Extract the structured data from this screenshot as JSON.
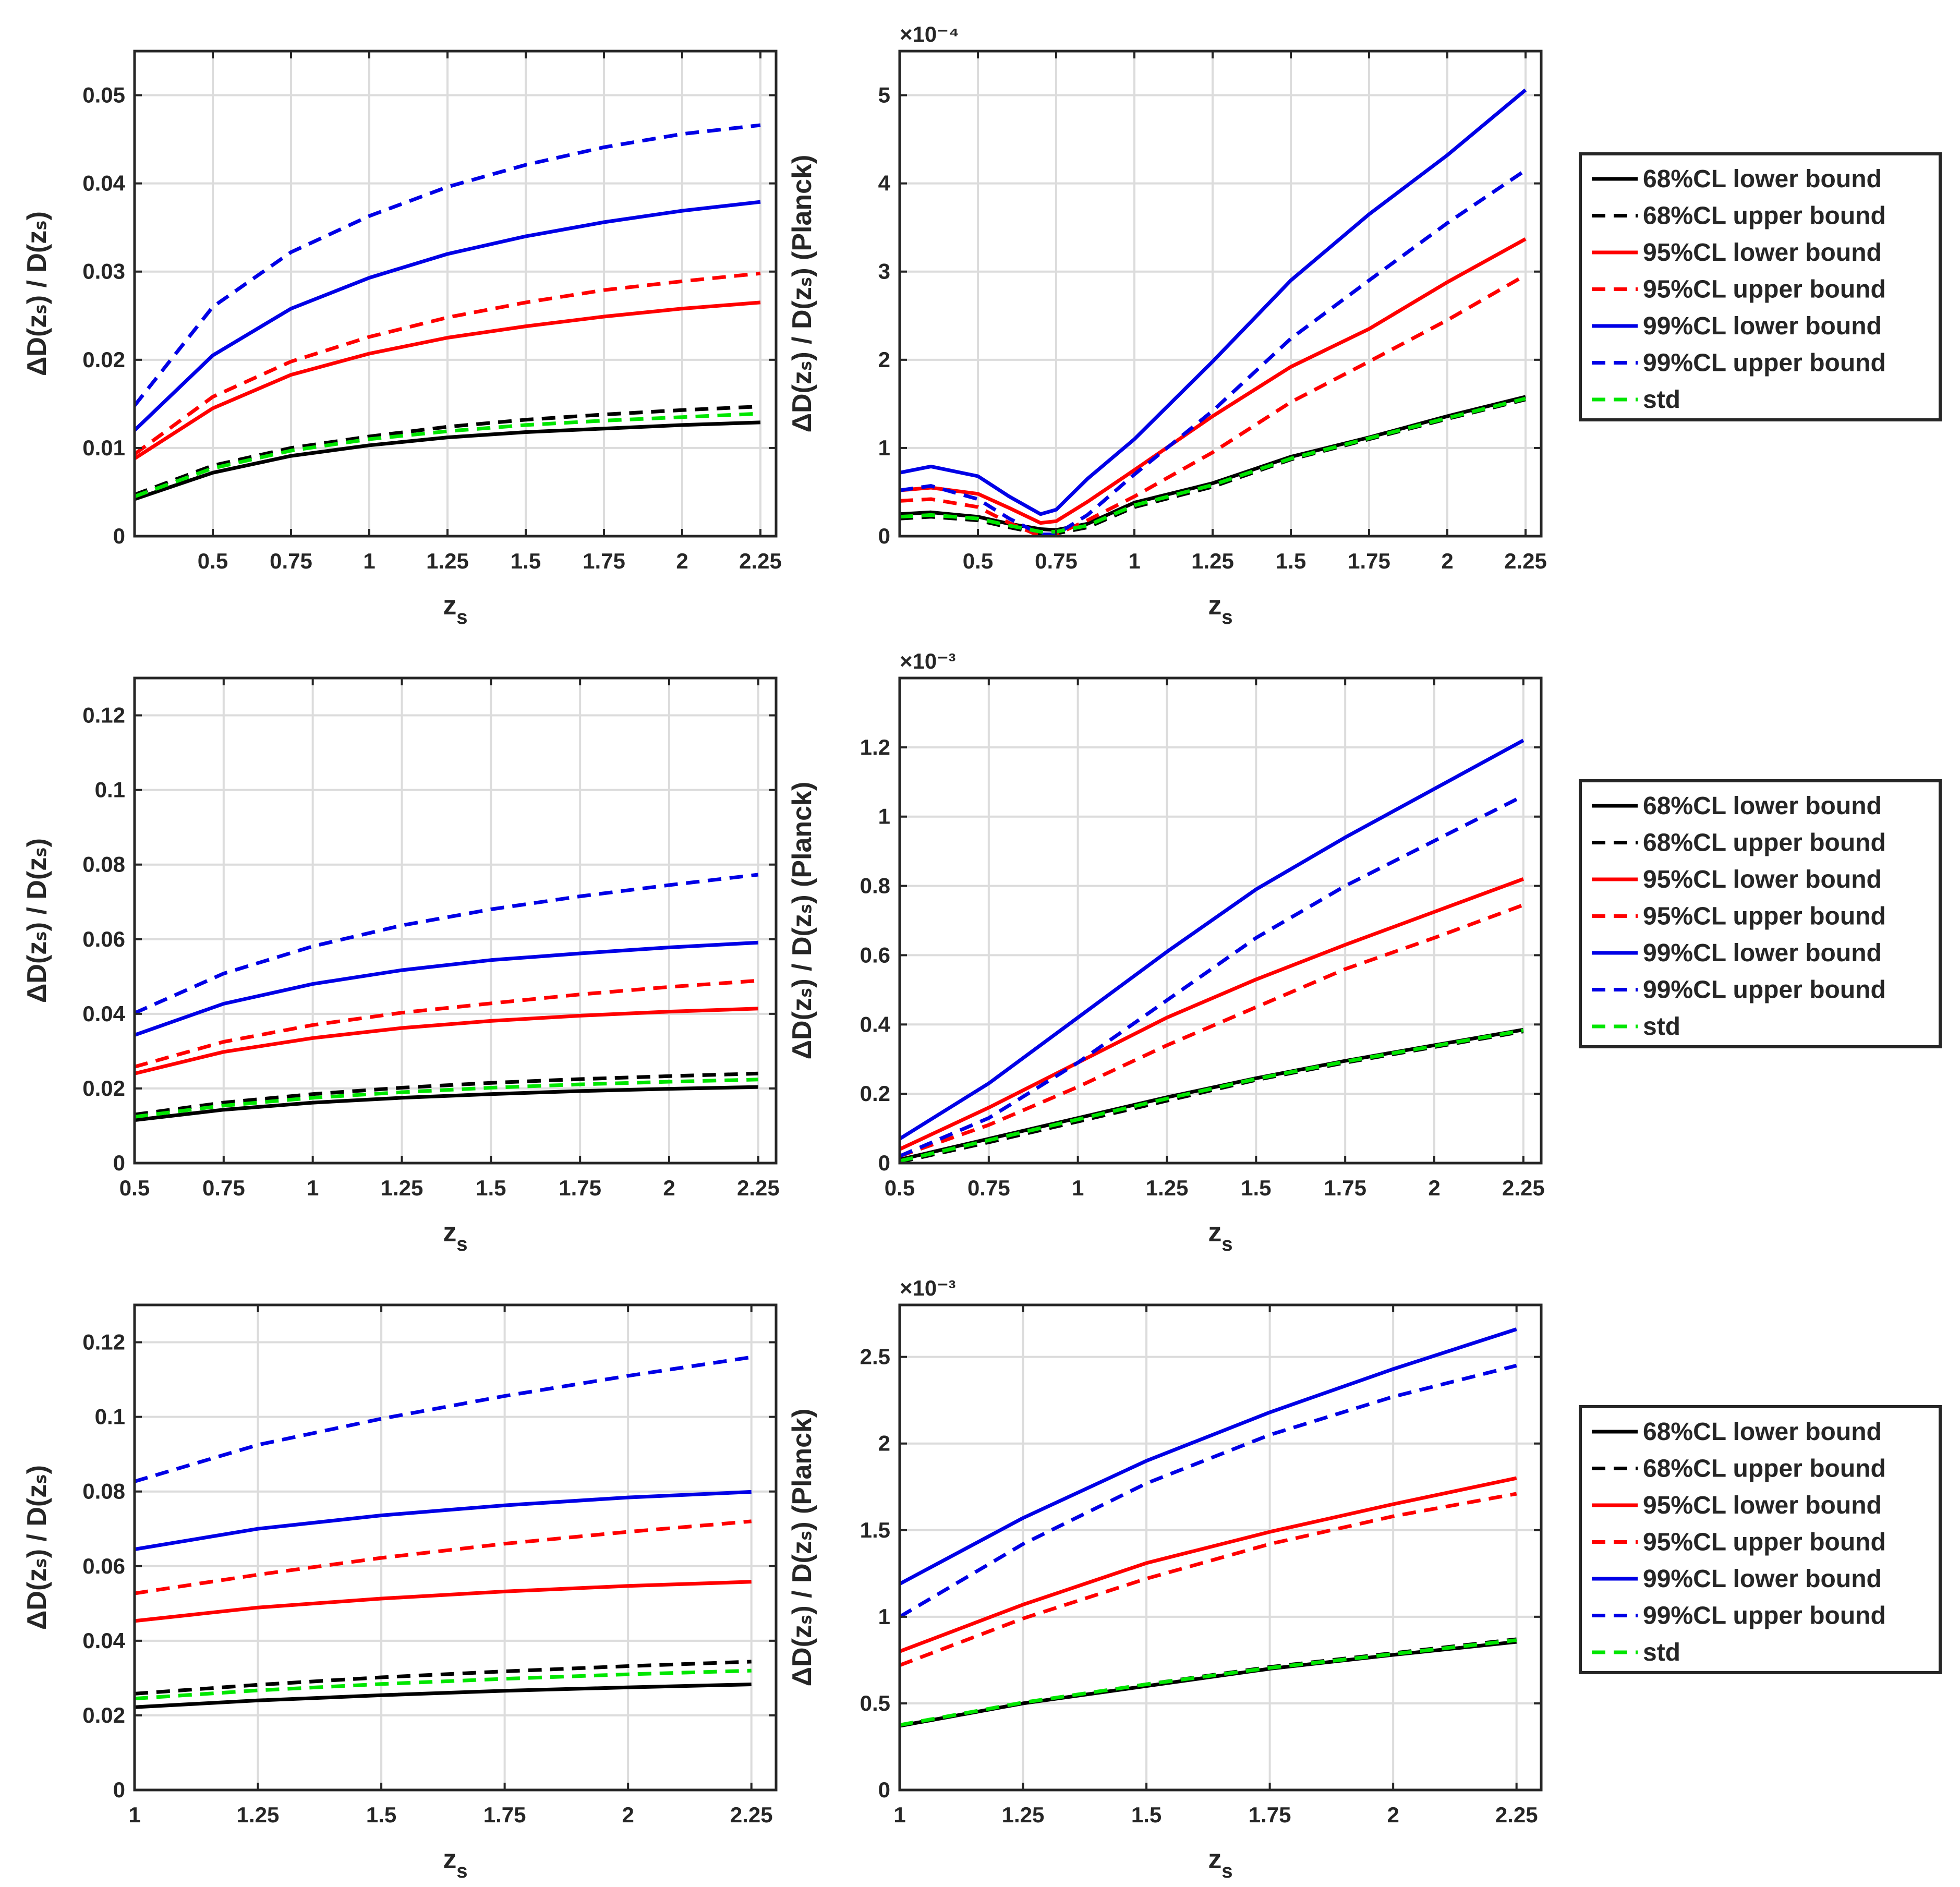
{
  "colors": {
    "black": "#000000",
    "red": "#ff0000",
    "blue": "#0000e6",
    "green": "#00e600",
    "grid": "#dcdcdc",
    "axis": "#262626"
  },
  "legend_entries": [
    {
      "label": "68%CL lower bound",
      "color": "black",
      "dash": false
    },
    {
      "label": "68%CL upper bound",
      "color": "black",
      "dash": true
    },
    {
      "label": "95%CL lower bound",
      "color": "red",
      "dash": false
    },
    {
      "label": "95%CL upper bound",
      "color": "red",
      "dash": true
    },
    {
      "label": "99%CL lower bound",
      "color": "blue",
      "dash": false
    },
    {
      "label": "99%CL upper bound",
      "color": "blue",
      "dash": true
    },
    {
      "label": "std",
      "color": "green",
      "dash": true
    }
  ],
  "chart_data": [
    {
      "type": "line",
      "name": "row1-left",
      "xlabel": "z",
      "xlabel_sub": "s",
      "ylabel": "ΔD(zₛ) / D(zₛ)",
      "xlim": [
        0.25,
        2.3
      ],
      "ylim": [
        0,
        0.055
      ],
      "xticks": [
        0.5,
        0.75,
        1,
        1.25,
        1.5,
        1.75,
        2,
        2.25
      ],
      "xtick_labels": [
        "0.5",
        "0.75",
        "1",
        "1.25",
        "1.5",
        "1.75",
        "2",
        "2.25"
      ],
      "yticks": [
        0,
        0.01,
        0.02,
        0.03,
        0.04,
        0.05
      ],
      "ytick_labels": [
        "0",
        "0.01",
        "0.02",
        "0.03",
        "0.04",
        "0.05"
      ],
      "exponent": "",
      "x": [
        0.25,
        0.5,
        0.75,
        1,
        1.25,
        1.5,
        1.75,
        2,
        2.25
      ],
      "series": [
        {
          "name": "68%CL lower bound",
          "color": "black",
          "dash": false,
          "values": [
            0.0042,
            0.0072,
            0.0091,
            0.0103,
            0.0112,
            0.0118,
            0.0122,
            0.0126,
            0.0129
          ]
        },
        {
          "name": "68%CL upper bound",
          "color": "black",
          "dash": true,
          "values": [
            0.0047,
            0.008,
            0.01,
            0.0113,
            0.0124,
            0.0132,
            0.0138,
            0.0143,
            0.0147
          ]
        },
        {
          "name": "95%CL lower bound",
          "color": "red",
          "dash": false,
          "values": [
            0.0088,
            0.0145,
            0.0183,
            0.0207,
            0.0225,
            0.0238,
            0.0249,
            0.0258,
            0.0265
          ]
        },
        {
          "name": "95%CL upper bound",
          "color": "red",
          "dash": true,
          "values": [
            0.0093,
            0.0158,
            0.0198,
            0.0226,
            0.0248,
            0.0265,
            0.0279,
            0.0289,
            0.0298
          ]
        },
        {
          "name": "99%CL lower bound",
          "color": "blue",
          "dash": false,
          "values": [
            0.012,
            0.0205,
            0.0258,
            0.0293,
            0.032,
            0.034,
            0.0356,
            0.0369,
            0.0379
          ]
        },
        {
          "name": "99%CL upper bound",
          "color": "blue",
          "dash": true,
          "values": [
            0.0148,
            0.026,
            0.0322,
            0.0363,
            0.0396,
            0.0421,
            0.0441,
            0.0456,
            0.0466
          ]
        },
        {
          "name": "std",
          "color": "green",
          "dash": true,
          "values": [
            0.0045,
            0.0077,
            0.0097,
            0.011,
            0.0119,
            0.0126,
            0.0131,
            0.0135,
            0.0139
          ]
        }
      ]
    },
    {
      "type": "line",
      "name": "row1-right",
      "xlabel": "z",
      "xlabel_sub": "s",
      "ylabel": "ΔD(zₛ) / D(zₛ) (Planck)",
      "xlim": [
        0.25,
        2.3
      ],
      "ylim": [
        0,
        5.5
      ],
      "xticks": [
        0.5,
        0.75,
        1,
        1.25,
        1.5,
        1.75,
        2,
        2.25
      ],
      "xtick_labels": [
        "0.5",
        "0.75",
        "1",
        "1.25",
        "1.5",
        "1.75",
        "2",
        "2.25"
      ],
      "yticks": [
        0,
        1,
        2,
        3,
        4,
        5
      ],
      "ytick_labels": [
        "0",
        "1",
        "2",
        "3",
        "4",
        "5"
      ],
      "exponent": "×10⁻⁴",
      "x": [
        0.25,
        0.35,
        0.5,
        0.6,
        0.7,
        0.75,
        0.85,
        1,
        1.25,
        1.5,
        1.75,
        2,
        2.25
      ],
      "series": [
        {
          "name": "68%CL lower bound",
          "color": "black",
          "dash": false,
          "values": [
            0.25,
            0.27,
            0.22,
            0.14,
            0.08,
            0.07,
            0.14,
            0.38,
            0.6,
            0.9,
            1.12,
            1.36,
            1.58
          ]
        },
        {
          "name": "68%CL upper bound",
          "color": "black",
          "dash": true,
          "values": [
            0.2,
            0.22,
            0.18,
            0.1,
            0.03,
            0.03,
            0.1,
            0.33,
            0.56,
            0.87,
            1.1,
            1.33,
            1.55
          ]
        },
        {
          "name": "95%CL lower bound",
          "color": "red",
          "dash": false,
          "values": [
            0.52,
            0.55,
            0.48,
            0.32,
            0.15,
            0.17,
            0.39,
            0.75,
            1.36,
            1.92,
            2.35,
            2.88,
            3.37
          ]
        },
        {
          "name": "95%CL upper bound",
          "color": "red",
          "dash": true,
          "values": [
            0.4,
            0.42,
            0.33,
            0.15,
            0.0,
            0.02,
            0.18,
            0.45,
            0.95,
            1.52,
            1.98,
            2.45,
            2.96
          ]
        },
        {
          "name": "99%CL lower bound",
          "color": "blue",
          "dash": false,
          "values": [
            0.72,
            0.79,
            0.68,
            0.45,
            0.25,
            0.3,
            0.65,
            1.1,
            1.98,
            2.9,
            3.65,
            4.32,
            5.06
          ]
        },
        {
          "name": "99%CL upper bound",
          "color": "blue",
          "dash": true,
          "values": [
            0.52,
            0.57,
            0.42,
            0.2,
            0.02,
            0.02,
            0.24,
            0.7,
            1.42,
            2.24,
            2.9,
            3.55,
            4.15
          ]
        },
        {
          "name": "std",
          "color": "green",
          "dash": true,
          "values": [
            0.22,
            0.24,
            0.2,
            0.12,
            0.05,
            0.05,
            0.12,
            0.35,
            0.58,
            0.88,
            1.11,
            1.34,
            1.56
          ]
        }
      ]
    },
    {
      "type": "line",
      "name": "row2-left",
      "xlabel": "z",
      "xlabel_sub": "s",
      "ylabel": "ΔD(zₛ) / D(zₛ)",
      "xlim": [
        0.5,
        2.3
      ],
      "ylim": [
        0,
        0.13
      ],
      "xticks": [
        0.5,
        0.75,
        1,
        1.25,
        1.5,
        1.75,
        2,
        2.25
      ],
      "xtick_labels": [
        "0.5",
        "0.75",
        "1",
        "1.25",
        "1.5",
        "1.75",
        "2",
        "2.25"
      ],
      "yticks": [
        0,
        0.02,
        0.04,
        0.06,
        0.08,
        0.1,
        0.12
      ],
      "ytick_labels": [
        "0",
        "0.02",
        "0.04",
        "0.06",
        "0.08",
        "0.1",
        "0.12"
      ],
      "exponent": "",
      "x": [
        0.5,
        0.75,
        1,
        1.25,
        1.5,
        1.75,
        2,
        2.25
      ],
      "series": [
        {
          "name": "68%CL lower bound",
          "color": "black",
          "dash": false,
          "values": [
            0.0115,
            0.0143,
            0.0162,
            0.0175,
            0.0185,
            0.0193,
            0.0199,
            0.0204
          ]
        },
        {
          "name": "68%CL upper bound",
          "color": "black",
          "dash": true,
          "values": [
            0.013,
            0.0162,
            0.0185,
            0.0202,
            0.0215,
            0.0225,
            0.0233,
            0.024
          ]
        },
        {
          "name": "95%CL lower bound",
          "color": "red",
          "dash": false,
          "values": [
            0.024,
            0.0298,
            0.0335,
            0.0362,
            0.0381,
            0.0395,
            0.0406,
            0.0414
          ]
        },
        {
          "name": "95%CL upper bound",
          "color": "red",
          "dash": true,
          "values": [
            0.0258,
            0.0325,
            0.037,
            0.0403,
            0.0428,
            0.0452,
            0.0472,
            0.0489
          ]
        },
        {
          "name": "99%CL lower bound",
          "color": "blue",
          "dash": false,
          "values": [
            0.0343,
            0.0427,
            0.048,
            0.0517,
            0.0544,
            0.0562,
            0.0578,
            0.0591
          ]
        },
        {
          "name": "99%CL upper bound",
          "color": "blue",
          "dash": true,
          "values": [
            0.0402,
            0.0508,
            0.0581,
            0.0637,
            0.068,
            0.0715,
            0.0745,
            0.0773
          ]
        },
        {
          "name": "std",
          "color": "green",
          "dash": true,
          "values": [
            0.0124,
            0.0154,
            0.0175,
            0.019,
            0.0202,
            0.0211,
            0.0218,
            0.0224
          ]
        }
      ]
    },
    {
      "type": "line",
      "name": "row2-right",
      "xlabel": "z",
      "xlabel_sub": "s",
      "ylabel": "ΔD(zₛ) / D(zₛ) (Planck)",
      "xlim": [
        0.5,
        2.3
      ],
      "ylim": [
        0,
        1.4
      ],
      "xticks": [
        0.5,
        0.75,
        1,
        1.25,
        1.5,
        1.75,
        2,
        2.25
      ],
      "xtick_labels": [
        "0.5",
        "0.75",
        "1",
        "1.25",
        "1.5",
        "1.75",
        "2",
        "2.25"
      ],
      "yticks": [
        0,
        0.2,
        0.4,
        0.6,
        0.8,
        1,
        1.2
      ],
      "ytick_labels": [
        "0",
        "0.2",
        "0.4",
        "0.6",
        "0.8",
        "1",
        "1.2"
      ],
      "exponent": "×10⁻³",
      "x": [
        0.5,
        0.75,
        1,
        1.25,
        1.5,
        1.75,
        2,
        2.25
      ],
      "series": [
        {
          "name": "68%CL lower bound",
          "color": "black",
          "dash": false,
          "values": [
            0.01,
            0.07,
            0.13,
            0.19,
            0.245,
            0.295,
            0.34,
            0.385
          ]
        },
        {
          "name": "68%CL upper bound",
          "color": "black",
          "dash": true,
          "values": [
            0.003,
            0.06,
            0.12,
            0.18,
            0.24,
            0.29,
            0.335,
            0.38
          ]
        },
        {
          "name": "95%CL lower bound",
          "color": "red",
          "dash": false,
          "values": [
            0.04,
            0.16,
            0.29,
            0.42,
            0.53,
            0.63,
            0.725,
            0.82
          ]
        },
        {
          "name": "95%CL upper bound",
          "color": "red",
          "dash": true,
          "values": [
            0.02,
            0.11,
            0.22,
            0.34,
            0.45,
            0.56,
            0.65,
            0.745
          ]
        },
        {
          "name": "99%CL lower bound",
          "color": "blue",
          "dash": false,
          "values": [
            0.07,
            0.23,
            0.42,
            0.61,
            0.79,
            0.94,
            1.08,
            1.22
          ]
        },
        {
          "name": "99%CL upper bound",
          "color": "blue",
          "dash": true,
          "values": [
            0.02,
            0.13,
            0.29,
            0.47,
            0.65,
            0.8,
            0.93,
            1.06
          ]
        },
        {
          "name": "std",
          "color": "green",
          "dash": true,
          "values": [
            0.006,
            0.066,
            0.126,
            0.186,
            0.243,
            0.293,
            0.338,
            0.383
          ]
        }
      ]
    },
    {
      "type": "line",
      "name": "row3-left",
      "xlabel": "z",
      "xlabel_sub": "s",
      "ylabel": "ΔD(zₛ) / D(zₛ)",
      "xlim": [
        1,
        2.3
      ],
      "ylim": [
        0,
        0.13
      ],
      "xticks": [
        1,
        1.25,
        1.5,
        1.75,
        2,
        2.25
      ],
      "xtick_labels": [
        "1",
        "1.25",
        "1.5",
        "1.75",
        "2",
        "2.25"
      ],
      "yticks": [
        0,
        0.02,
        0.04,
        0.06,
        0.08,
        0.1,
        0.12
      ],
      "ytick_labels": [
        "0",
        "0.02",
        "0.04",
        "0.06",
        "0.08",
        "0.1",
        "0.12"
      ],
      "exponent": "",
      "x": [
        1,
        1.25,
        1.5,
        1.75,
        2,
        2.25
      ],
      "series": [
        {
          "name": "68%CL lower bound",
          "color": "black",
          "dash": false,
          "values": [
            0.0222,
            0.024,
            0.0254,
            0.0266,
            0.0275,
            0.0283
          ]
        },
        {
          "name": "68%CL upper bound",
          "color": "black",
          "dash": true,
          "values": [
            0.0258,
            0.0282,
            0.0302,
            0.0318,
            0.0332,
            0.0344
          ]
        },
        {
          "name": "95%CL lower bound",
          "color": "red",
          "dash": false,
          "values": [
            0.0453,
            0.0489,
            0.0513,
            0.0532,
            0.0547,
            0.0558
          ]
        },
        {
          "name": "95%CL upper bound",
          "color": "red",
          "dash": true,
          "values": [
            0.0527,
            0.0577,
            0.0622,
            0.066,
            0.0692,
            0.072
          ]
        },
        {
          "name": "99%CL lower bound",
          "color": "blue",
          "dash": false,
          "values": [
            0.0645,
            0.07,
            0.0736,
            0.0763,
            0.0784,
            0.0799
          ]
        },
        {
          "name": "99%CL upper bound",
          "color": "blue",
          "dash": true,
          "values": [
            0.0827,
            0.0925,
            0.0995,
            0.1056,
            0.111,
            0.116
          ]
        },
        {
          "name": "std",
          "color": "green",
          "dash": true,
          "values": [
            0.0245,
            0.0267,
            0.0284,
            0.0298,
            0.031,
            0.032
          ]
        }
      ]
    },
    {
      "type": "line",
      "name": "row3-right",
      "xlabel": "z",
      "xlabel_sub": "s",
      "ylabel": "ΔD(zₛ) / D(zₛ) (Planck)",
      "xlim": [
        1,
        2.3
      ],
      "ylim": [
        0,
        2.8
      ],
      "xticks": [
        1,
        1.25,
        1.5,
        1.75,
        2,
        2.25
      ],
      "xtick_labels": [
        "1",
        "1.25",
        "1.5",
        "1.75",
        "2",
        "2.25"
      ],
      "yticks": [
        0,
        0.5,
        1,
        1.5,
        2,
        2.5
      ],
      "ytick_labels": [
        "0",
        "0.5",
        "1",
        "1.5",
        "2",
        "2.5"
      ],
      "exponent": "×10⁻³",
      "x": [
        1,
        1.25,
        1.5,
        1.75,
        2,
        2.25
      ],
      "series": [
        {
          "name": "68%CL lower bound",
          "color": "black",
          "dash": false,
          "values": [
            0.37,
            0.5,
            0.6,
            0.7,
            0.78,
            0.855
          ]
        },
        {
          "name": "68%CL upper bound",
          "color": "black",
          "dash": true,
          "values": [
            0.37,
            0.5,
            0.61,
            0.71,
            0.79,
            0.87
          ]
        },
        {
          "name": "95%CL lower bound",
          "color": "red",
          "dash": false,
          "values": [
            0.8,
            1.07,
            1.31,
            1.49,
            1.65,
            1.8
          ]
        },
        {
          "name": "95%CL upper bound",
          "color": "red",
          "dash": true,
          "values": [
            0.72,
            0.99,
            1.22,
            1.42,
            1.58,
            1.71
          ]
        },
        {
          "name": "99%CL lower bound",
          "color": "blue",
          "dash": false,
          "values": [
            1.19,
            1.57,
            1.9,
            2.18,
            2.43,
            2.66
          ]
        },
        {
          "name": "99%CL upper bound",
          "color": "blue",
          "dash": true,
          "values": [
            1.0,
            1.42,
            1.77,
            2.05,
            2.27,
            2.45
          ]
        },
        {
          "name": "std",
          "color": "green",
          "dash": true,
          "values": [
            0.375,
            0.505,
            0.61,
            0.705,
            0.785,
            0.865
          ]
        }
      ]
    }
  ]
}
